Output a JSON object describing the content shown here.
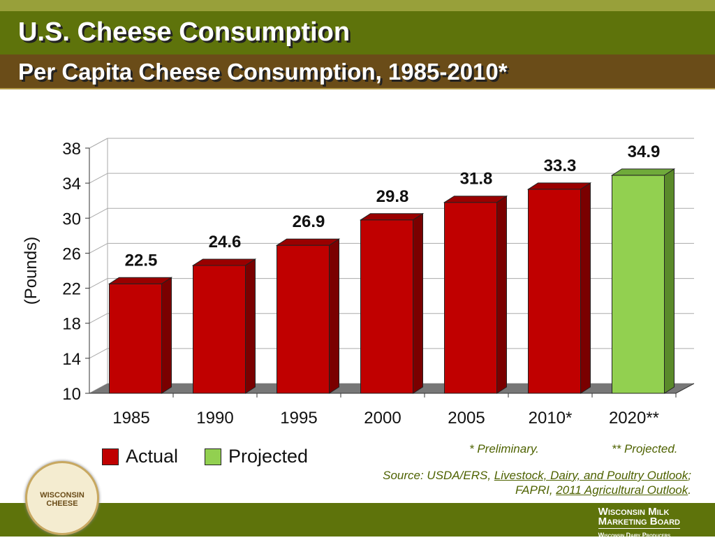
{
  "header": {
    "title": "U.S. Cheese Consumption",
    "subtitle": "Per Capita Cheese Consumption, 1985-2010*"
  },
  "chart_data": {
    "type": "bar",
    "categories": [
      "1985",
      "1990",
      "1995",
      "2000",
      "2005",
      "2010*",
      "2020**"
    ],
    "values": [
      22.5,
      24.6,
      26.9,
      29.8,
      31.8,
      33.3,
      34.9
    ],
    "data_labels": [
      "22.5",
      "24.6",
      "26.9",
      "29.8",
      "31.8",
      "33.3",
      "34.9"
    ],
    "kinds": [
      "Actual",
      "Actual",
      "Actual",
      "Actual",
      "Actual",
      "Actual",
      "Projected"
    ],
    "ylabel": "(Pounds)",
    "ylim": [
      10,
      38
    ],
    "yticks": [
      "10",
      "14",
      "18",
      "22",
      "26",
      "30",
      "34",
      "38"
    ],
    "grid": true,
    "three_d": true,
    "legend": {
      "placement": "bottom-left",
      "items": [
        {
          "label": "Actual",
          "color": "#c00000"
        },
        {
          "label": "Projected",
          "color": "#92d050"
        }
      ]
    }
  },
  "notes": {
    "preliminary": "* Preliminary.",
    "projected": "** Projected.",
    "source_prefix": "Source: USDA/ERS, ",
    "source_link1": "Livestock, Dairy, and Poultry Outlook",
    "source_sep": ";",
    "source_line2_prefix": "FAPRI, ",
    "source_link2": "2011 Agricultural Outlook",
    "source_end": "."
  },
  "footer": {
    "org_line1": "Wisconsin Milk",
    "org_line2": "Marketing Board",
    "org_line3": "Wisconsin Dairy Producers",
    "logo_text": "WISCONSIN CHEESE"
  }
}
